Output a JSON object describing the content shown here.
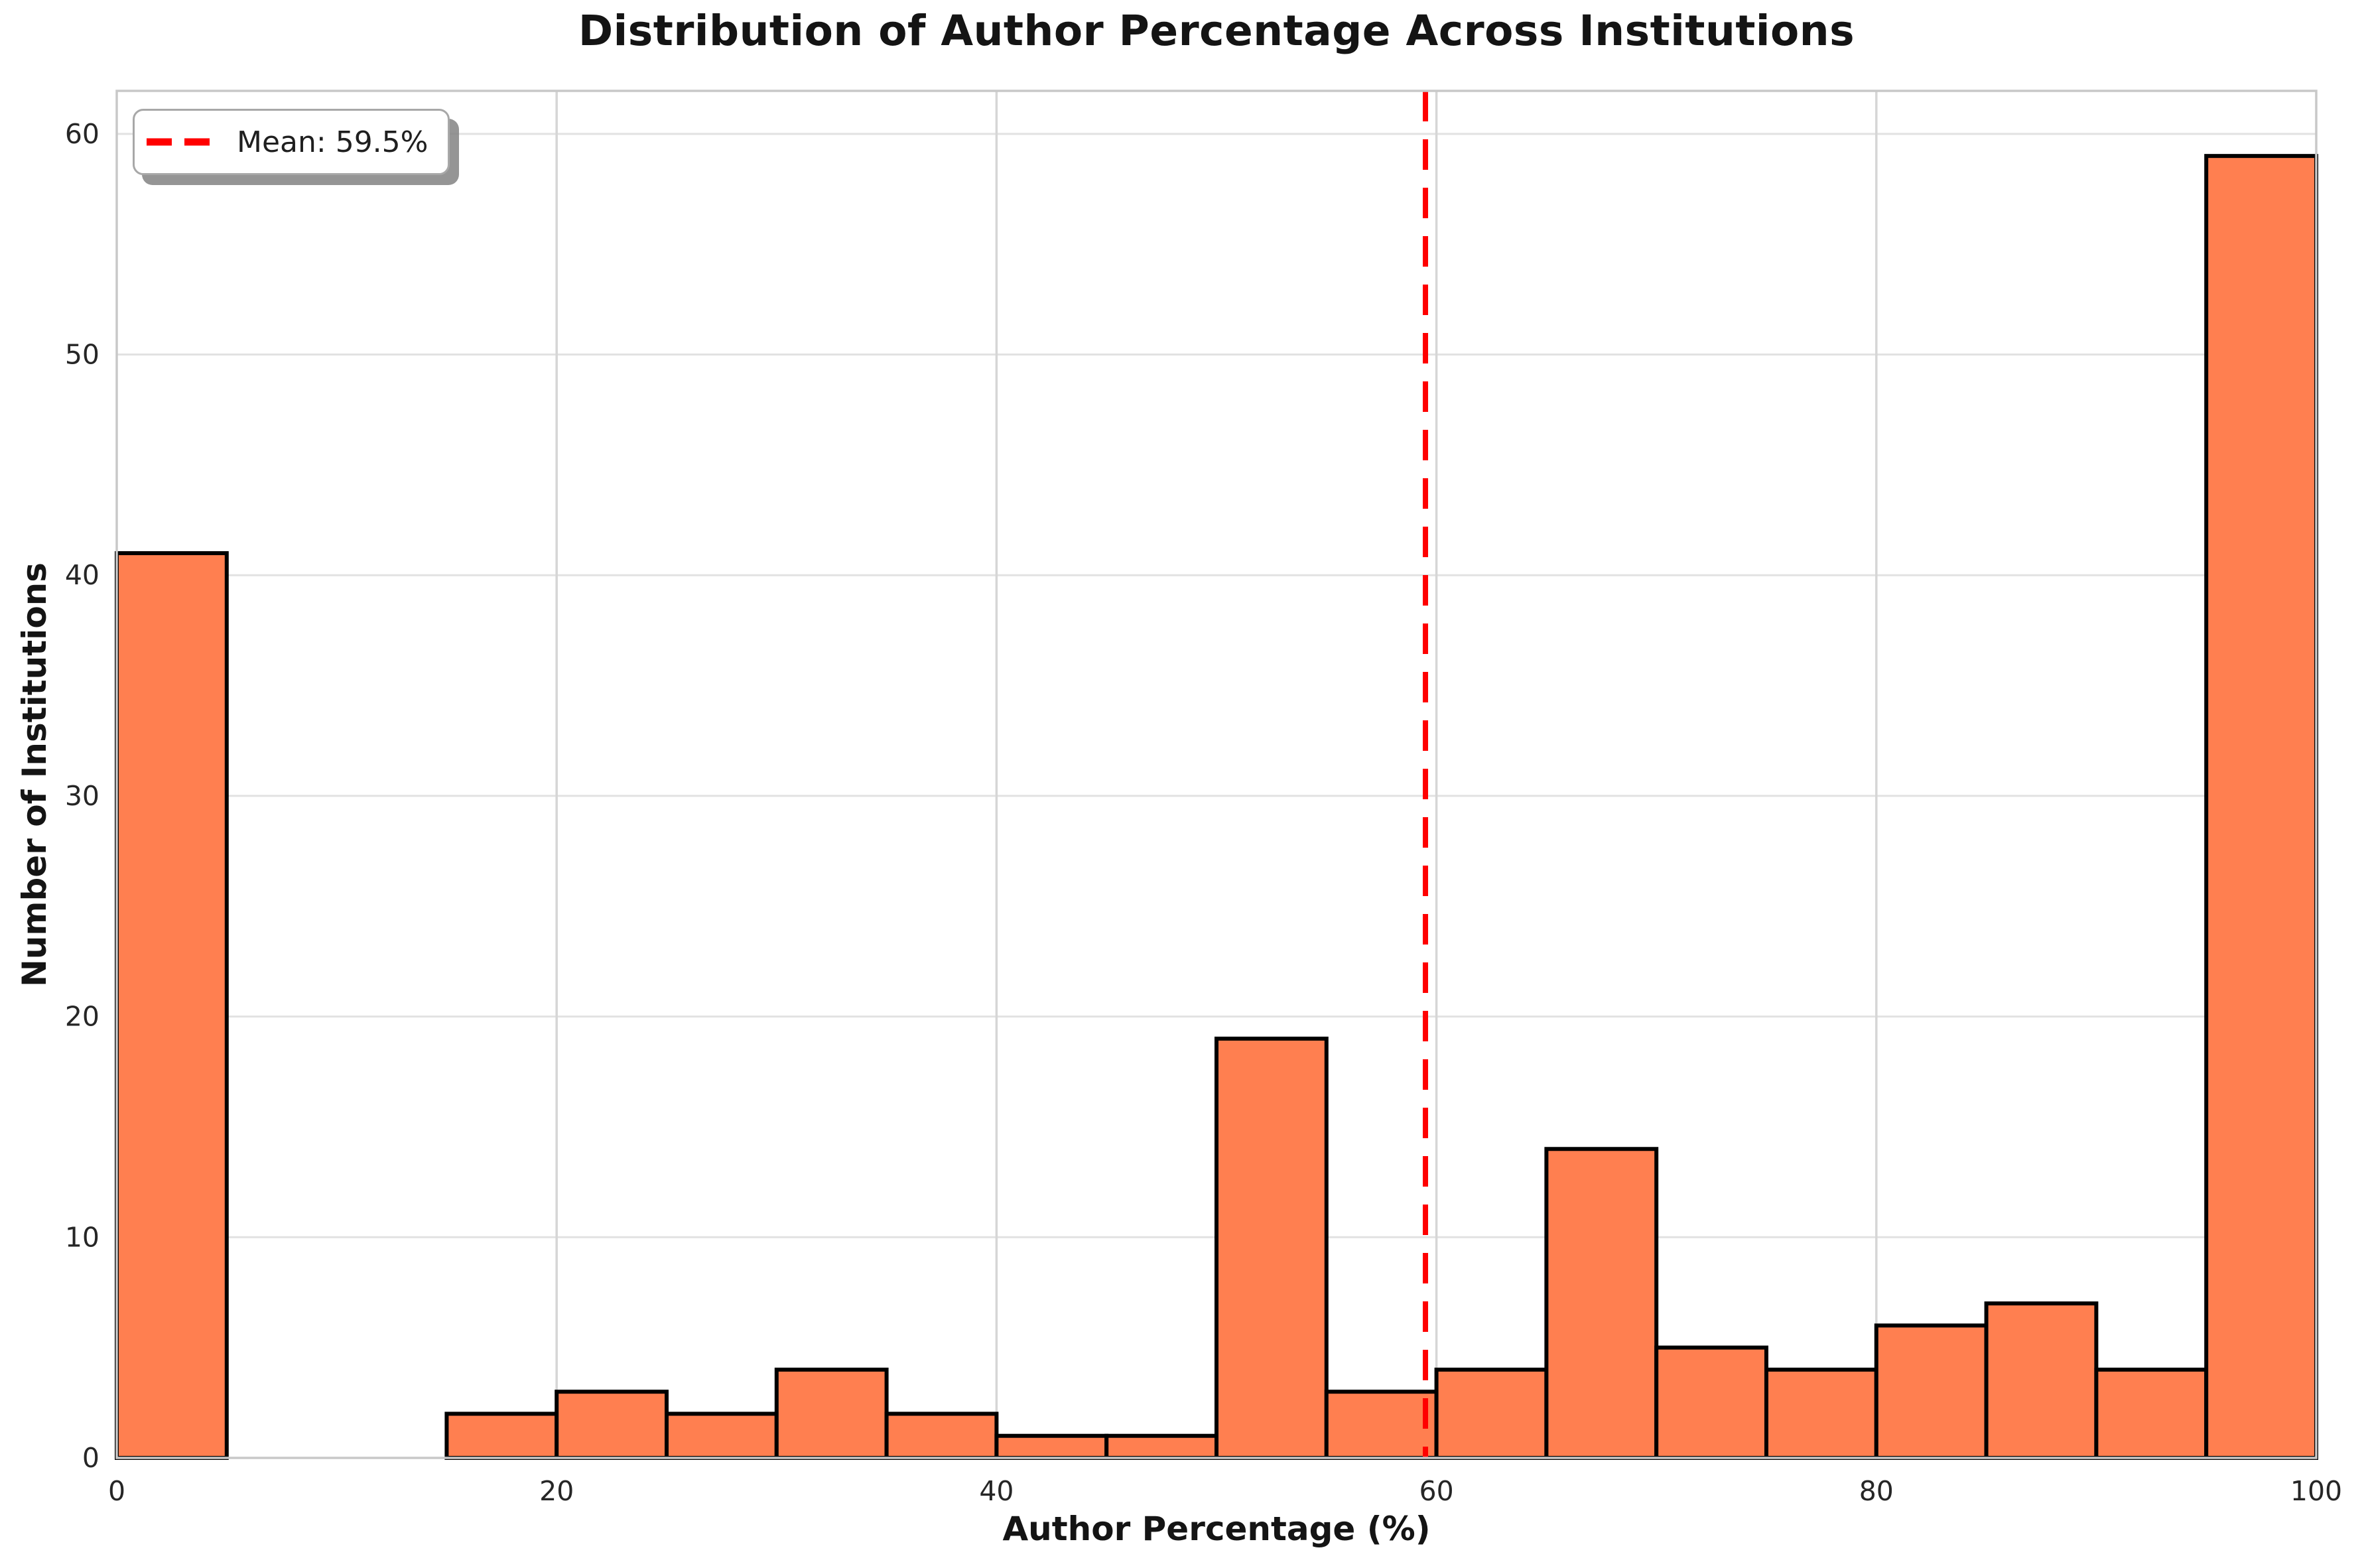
{
  "figure": {
    "background": "#ffffff"
  },
  "chart_data": {
    "type": "bar",
    "subtype": "histogram",
    "title": "Distribution of Author Percentage Across Institutions",
    "xlabel": "Author Percentage (%)",
    "ylabel": "Number of Institutions",
    "bin_width": 5,
    "bin_edges": [
      0,
      5,
      10,
      15,
      20,
      25,
      30,
      35,
      40,
      45,
      50,
      55,
      60,
      65,
      70,
      75,
      80,
      85,
      90,
      95,
      100
    ],
    "categories": [
      "0-5",
      "5-10",
      "10-15",
      "15-20",
      "20-25",
      "25-30",
      "30-35",
      "35-40",
      "40-45",
      "45-50",
      "50-55",
      "55-60",
      "60-65",
      "65-70",
      "70-75",
      "75-80",
      "80-85",
      "85-90",
      "90-95",
      "95-100"
    ],
    "values": [
      41,
      0,
      0,
      2,
      3,
      2,
      4,
      2,
      1,
      1,
      19,
      3,
      4,
      14,
      5,
      4,
      6,
      7,
      4,
      59
    ],
    "xlim": [
      0,
      100
    ],
    "ylim": [
      0,
      61.95
    ],
    "x_ticks": [
      0,
      20,
      40,
      60,
      80,
      100
    ],
    "y_ticks": [
      0,
      10,
      20,
      30,
      40,
      50,
      60
    ],
    "grid": true,
    "legend": {
      "position": "upper left",
      "entries": [
        {
          "label": "Mean: 59.5%",
          "color": "#ff0000",
          "style": "dashed"
        }
      ]
    },
    "mean_line": {
      "x": 59.5,
      "color": "#ff0000",
      "style": "dashed"
    },
    "colors": {
      "bar_fill": "#FF7F50",
      "bar_edge": "#000000",
      "grid_horizontal": "#e2e2e2",
      "grid_vertical": "#d6d6d6",
      "spine": "#c8c8c8",
      "tick_text": "#262626"
    }
  }
}
